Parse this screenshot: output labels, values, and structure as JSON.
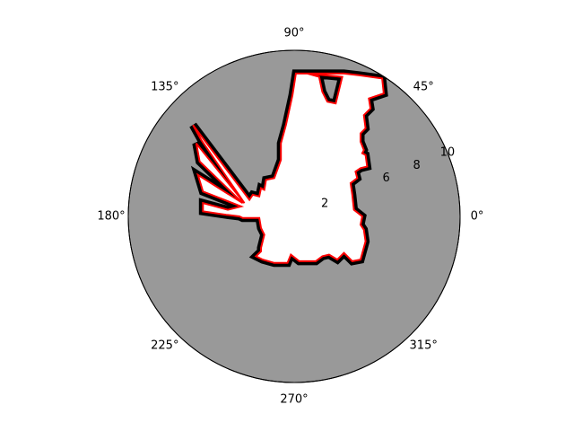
{
  "chart_data": {
    "type": "polar-occupancy",
    "title": "",
    "background_color": "#999999",
    "free_color": "#ffffff",
    "occupied_color": "#000000",
    "scan_color": "#ff0000",
    "angle_ticks": [
      {
        "deg": 0,
        "label": "0°"
      },
      {
        "deg": 45,
        "label": "45°"
      },
      {
        "deg": 90,
        "label": "90°"
      },
      {
        "deg": 135,
        "label": "135°"
      },
      {
        "deg": 180,
        "label": "180°"
      },
      {
        "deg": 225,
        "label": "225°"
      },
      {
        "deg": 270,
        "label": "270°"
      },
      {
        "deg": 315,
        "label": "315°"
      }
    ],
    "radial_ticks": [
      {
        "r": 2,
        "label": "2"
      },
      {
        "r": 6,
        "label": "6"
      },
      {
        "r": 8,
        "label": "8"
      },
      {
        "r": 10,
        "label": "10"
      }
    ],
    "radial_label_angle_deg": 22.5,
    "rlim": [
      0,
      10
    ],
    "scan_boundary_xy": [
      [
        0.8,
        8.6
      ],
      [
        3.0,
        8.6
      ],
      [
        3.9,
        8.5
      ],
      [
        5.3,
        8.3
      ],
      [
        5.4,
        7.4
      ],
      [
        4.5,
        7.1
      ],
      [
        4.6,
        6.5
      ],
      [
        4.2,
        6.1
      ],
      [
        4.3,
        5.3
      ],
      [
        4.0,
        5.0
      ],
      [
        4.0,
        4.5
      ],
      [
        4.2,
        4.0
      ],
      [
        4.1,
        3.8
      ],
      [
        4.3,
        3.7
      ],
      [
        4.4,
        3.0
      ],
      [
        4.0,
        2.9
      ],
      [
        3.7,
        2.7
      ],
      [
        3.8,
        2.3
      ],
      [
        3.4,
        2.0
      ],
      [
        3.5,
        1.3
      ],
      [
        3.6,
        0.4
      ],
      [
        4.1,
        0.0
      ],
      [
        4.0,
        -0.5
      ],
      [
        4.2,
        -0.8
      ],
      [
        4.3,
        -1.5
      ],
      [
        4.0,
        -2.6
      ],
      [
        3.5,
        -2.7
      ],
      [
        3.0,
        -2.2
      ],
      [
        2.6,
        -2.6
      ],
      [
        2.1,
        -2.3
      ],
      [
        1.7,
        -2.4
      ],
      [
        1.3,
        -2.7
      ],
      [
        0.3,
        -2.7
      ],
      [
        -0.2,
        -2.3
      ],
      [
        -0.4,
        -2.8
      ],
      [
        -1.2,
        -2.8
      ],
      [
        -1.9,
        -2.6
      ],
      [
        -2.3,
        -2.4
      ],
      [
        -2.0,
        -2.1
      ],
      [
        -2.0,
        -1.9
      ],
      [
        -1.8,
        -1.1
      ],
      [
        -2.0,
        -0.7
      ],
      [
        -2.1,
        -0.1
      ],
      [
        -3.1,
        -0.1
      ],
      [
        -3.3,
        0.0
      ],
      [
        -4.1,
        0.1
      ],
      [
        -5.5,
        0.3
      ],
      [
        -5.5,
        0.8
      ],
      [
        -4.0,
        0.4
      ],
      [
        -3.2,
        0.6
      ],
      [
        -5.5,
        1.5
      ],
      [
        -5.8,
        2.5
      ],
      [
        -3.1,
        0.8
      ],
      [
        -5.7,
        3.3
      ],
      [
        -5.9,
        4.4
      ],
      [
        -3.0,
        0.8
      ],
      [
        -5.6,
        4.6
      ],
      [
        -6.1,
        5.5
      ],
      [
        -2.7,
        1.0
      ],
      [
        -2.5,
        1.3
      ],
      [
        -2.1,
        1.2
      ],
      [
        -2.0,
        1.7
      ],
      [
        -1.8,
        1.6
      ],
      [
        -1.7,
        2.2
      ],
      [
        -1.2,
        2.3
      ],
      [
        -0.8,
        3.4
      ],
      [
        -0.8,
        4.4
      ],
      [
        -0.5,
        5.5
      ],
      [
        -0.1,
        7.3
      ],
      [
        0.1,
        8.6
      ],
      [
        0.8,
        8.6
      ],
      [
        1.5,
        8.4
      ],
      [
        1.7,
        7.5
      ],
      [
        2.0,
        6.9
      ],
      [
        2.5,
        6.8
      ],
      [
        2.9,
        8.4
      ],
      [
        0.8,
        8.6
      ]
    ]
  }
}
